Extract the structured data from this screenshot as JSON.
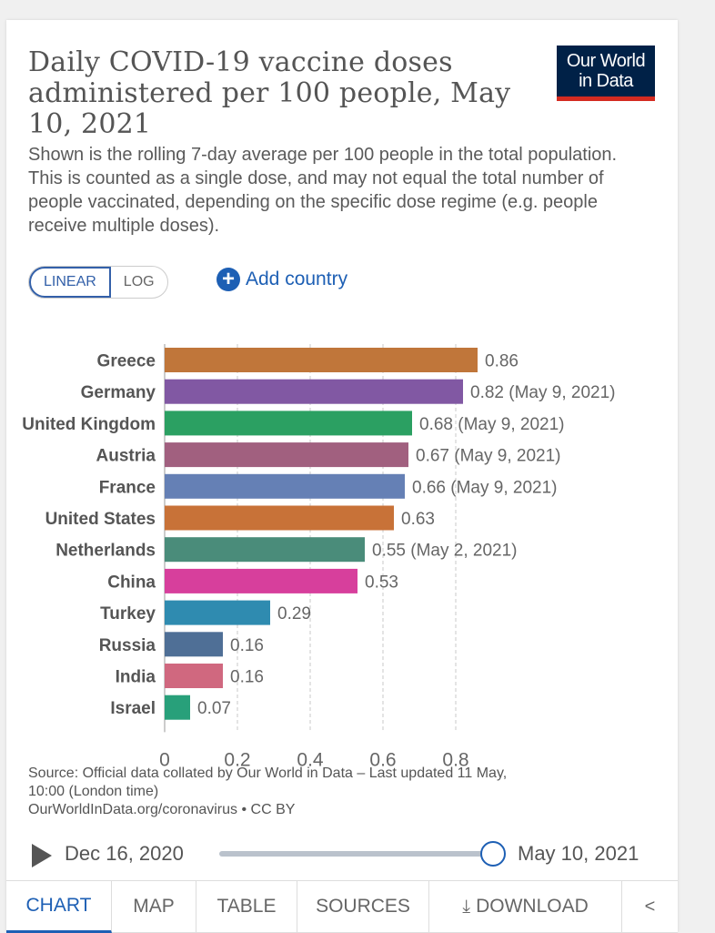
{
  "header": {
    "title": "Daily COVID-19 vaccine doses administered per 100 people, May 10, 2021",
    "subtitle": "Shown is the rolling 7-day average per 100 people in the total population. This is counted as a single dose, and may not equal the total number of people vaccinated, depending on the specific dose regime (e.g. people receive multiple doses).",
    "logo_line1": "Our World",
    "logo_line2": "in Data"
  },
  "controls": {
    "linear_label": "LINEAR",
    "log_label": "LOG",
    "add_country_label": "Add country"
  },
  "chart_data": {
    "type": "bar",
    "orientation": "horizontal",
    "title": "Daily COVID-19 vaccine doses administered per 100 people, May 10, 2021",
    "xlim": [
      0,
      0.8
    ],
    "x_ticks": [
      "0",
      "0.2",
      "0.4",
      "0.6",
      "0.8"
    ],
    "grid": "vertical dashed",
    "categories": [
      "Greece",
      "Germany",
      "United Kingdom",
      "Austria",
      "France",
      "United States",
      "Netherlands",
      "China",
      "Turkey",
      "Russia",
      "India",
      "Israel"
    ],
    "values": [
      0.86,
      0.82,
      0.68,
      0.67,
      0.66,
      0.63,
      0.55,
      0.53,
      0.29,
      0.16,
      0.16,
      0.07
    ],
    "data_labels": [
      "0.86",
      "0.82 (May 9, 2021)",
      "0.68 (May 9, 2021)",
      "0.67 (May 9, 2021)",
      "0.66 (May 9, 2021)",
      "0.63",
      "0.55 (May 2, 2021)",
      "0.53",
      "0.29",
      "0.16",
      "0.16",
      "0.07"
    ],
    "colors": [
      "#c0763a",
      "#8158a3",
      "#2ba062",
      "#a1607f",
      "#6580b5",
      "#c87238",
      "#4a8c7a",
      "#d73f9c",
      "#2f8bb0",
      "#4f6f96",
      "#d0687f",
      "#28a07a"
    ]
  },
  "footer": {
    "source_line1": "Source: Official data collated by Our World in Data – Last updated 11 May,",
    "source_line2": "10:00 (London time)",
    "source_line3": "OurWorldInData.org/coronavirus • CC BY"
  },
  "timeline": {
    "start_label": "Dec 16, 2020",
    "end_label": "May 10, 2021"
  },
  "tabs": {
    "chart": "CHART",
    "map": "MAP",
    "table": "TABLE",
    "sources": "SOURCES",
    "download": "DOWNLOAD"
  }
}
